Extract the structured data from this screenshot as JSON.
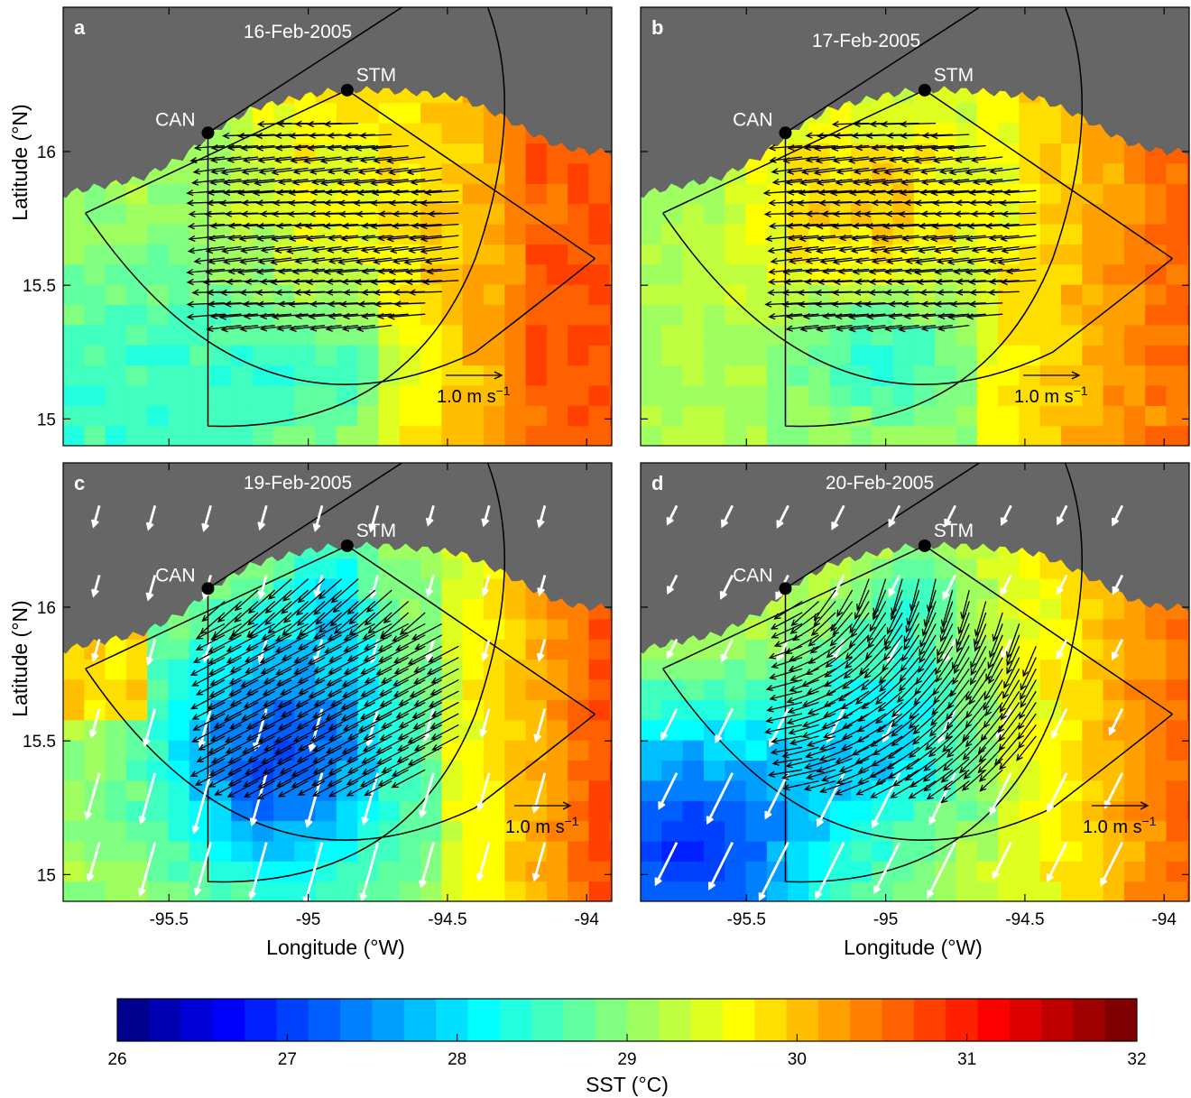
{
  "colors": {
    "land": "#666666",
    "vector_hf_radar": "#000000",
    "vector_wind": "#ffffff",
    "outline": "#000000",
    "label_on_land": "#ffffff"
  },
  "map": {
    "lon_range": [
      -95.88,
      -93.91
    ],
    "lat_range": [
      14.9,
      16.54
    ],
    "x_ticks": [
      -95.5,
      -95,
      -94.5,
      -94
    ],
    "x_tick_labels": [
      "-95.5",
      "-95",
      "-94.5",
      "-94"
    ],
    "y_ticks": [
      15,
      15.5,
      16
    ],
    "y_tick_labels": [
      "15",
      "15.5",
      "16"
    ],
    "xlabel": "Longitude (°W)",
    "ylabel": "Latitude (°N)"
  },
  "stations": [
    {
      "id": "CAN",
      "label": "CAN",
      "lon": -95.36,
      "lat": 16.07
    },
    {
      "id": "STM",
      "label": "STM",
      "lon": -94.86,
      "lat": 16.23
    }
  ],
  "scale_arrow": {
    "label_text": "1.0 m s",
    "label_exp": "−1",
    "length_ms": 1.0
  },
  "panels": [
    {
      "id": "a",
      "letter": "a",
      "date": "16-Feb-2005",
      "sst_cold_center": 28.3,
      "flow": "westward",
      "wind_vectors": false
    },
    {
      "id": "b",
      "letter": "b",
      "date": "17-Feb-2005",
      "sst_cold_center": 28.7,
      "flow": "westward",
      "wind_vectors": false
    },
    {
      "id": "c",
      "letter": "c",
      "date": "19-Feb-2005",
      "sst_cold_center": 26.9,
      "flow": "southwestward",
      "wind_vectors": true
    },
    {
      "id": "d",
      "letter": "d",
      "date": "20-Feb-2005",
      "sst_cold_center": 27.4,
      "flow": "anticyclonic",
      "wind_vectors": true
    }
  ],
  "chart_data": {
    "type": "heatmap",
    "variable": "SST (°C)",
    "colorbar": {
      "label": "SST (°C)",
      "min": 26,
      "max": 32,
      "ticks": [
        26,
        27,
        28,
        29,
        30,
        31,
        32
      ],
      "tick_labels": [
        "26",
        "27",
        "28",
        "29",
        "30",
        "31",
        "32"
      ],
      "n_colors": 28
    }
  }
}
